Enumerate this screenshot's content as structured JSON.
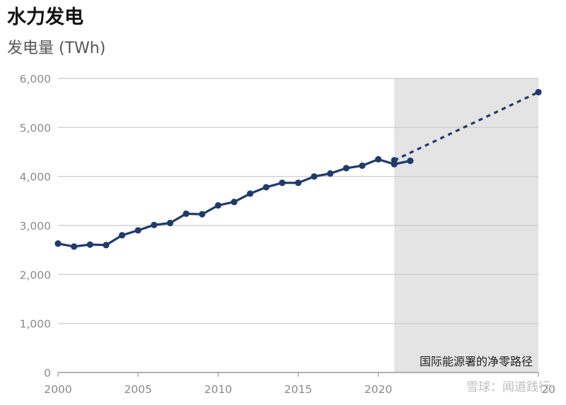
{
  "chart_data": {
    "type": "line",
    "title": "水力发电",
    "subtitle": "发电量 (TWh)",
    "xlim": [
      2000,
      2030
    ],
    "ylim": [
      0,
      6000
    ],
    "y_ticks": [
      0,
      1000,
      2000,
      3000,
      4000,
      5000,
      6000
    ],
    "y_tick_labels": [
      "0",
      "1,000",
      "2,000",
      "3,000",
      "4,000",
      "5,000",
      "6,000"
    ],
    "x_ticks": [
      2000,
      2005,
      2010,
      2015,
      2020
    ],
    "x_tick_labels": [
      "2000",
      "2005",
      "2010",
      "2015",
      "2020"
    ],
    "x_tick_partial_label": "20",
    "grid": true,
    "colors": {
      "series": "#1f3b6e",
      "shade": "#e4e4e4",
      "grid": "#c8c8c8",
      "tick": "#8a8a8a"
    },
    "shaded_region": {
      "x_from": 2021,
      "x_to": 2030,
      "label": "国际能源署的净零路径"
    },
    "series": [
      {
        "style": "solid",
        "x": [
          2000,
          2001,
          2002,
          2003,
          2004,
          2005,
          2006,
          2007,
          2008,
          2009,
          2010,
          2011,
          2012,
          2013,
          2014,
          2015,
          2016,
          2017,
          2018,
          2019,
          2020,
          2021,
          2022
        ],
        "values": [
          2630,
          2570,
          2610,
          2600,
          2800,
          2900,
          3010,
          3050,
          3240,
          3230,
          3410,
          3480,
          3650,
          3780,
          3870,
          3870,
          4000,
          4060,
          4170,
          4220,
          4350,
          4250,
          4320
        ]
      },
      {
        "style": "dashed",
        "x": [
          2021,
          2030
        ],
        "values": [
          4330,
          5720
        ]
      }
    ]
  },
  "watermark": "雪球：闻道践行"
}
